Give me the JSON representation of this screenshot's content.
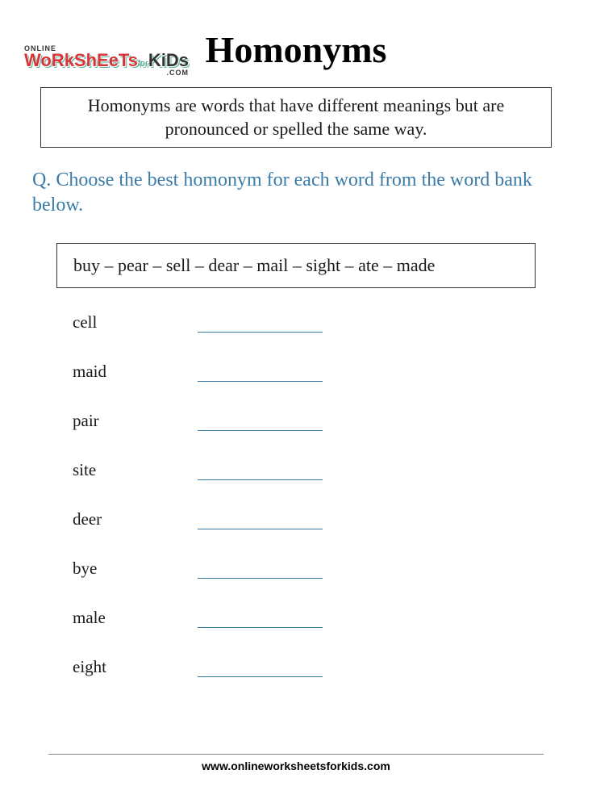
{
  "logo": {
    "online": "ONLINE",
    "worksheets": "WoRkShEeTs",
    "for": "for",
    "kids": "KiDs",
    "com": ".COM"
  },
  "title": "Homonyms",
  "definition": "Homonyms are words that have different meanings but are pronounced or spelled the same way.",
  "question": {
    "label": "Q.",
    "text": "Choose the best homonym for each word from the word bank below."
  },
  "word_bank": "buy – pear – sell – dear – mail – sight – ate – made",
  "words": [
    "cell",
    "maid",
    "pair",
    "site",
    "deer",
    "bye",
    "male",
    "eight"
  ],
  "footer": "www.onlineworksheetsforkids.com",
  "colors": {
    "accent": "#3b7ba8",
    "logo_red": "#d63638",
    "logo_green": "#4a9b7f",
    "text": "#1a1a1a",
    "border": "#333333"
  }
}
